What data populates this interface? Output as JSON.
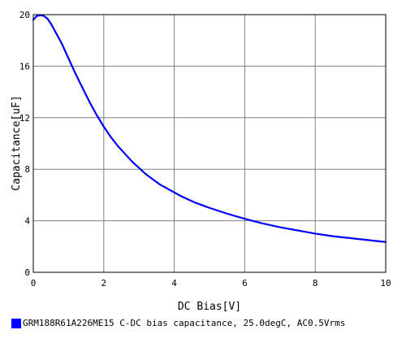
{
  "chart_data": {
    "type": "line",
    "xlabel": "DC Bias[V]",
    "ylabel": "Capacitance[uF]",
    "xlim": [
      0,
      10
    ],
    "ylim": [
      0,
      20
    ],
    "xticks": [
      "0",
      "2",
      "4",
      "6",
      "8",
      "10"
    ],
    "yticks": [
      "0",
      "4",
      "8",
      "12",
      "16",
      "20"
    ],
    "grid": true,
    "legend_position": "bottom-left",
    "series": [
      {
        "name": "GRM188R61A226ME15 C-DC bias capacitance, 25.0degC, AC0.5Vrms",
        "color": "#0000ff",
        "x": [
          0,
          0.1,
          0.2,
          0.3,
          0.4,
          0.5,
          0.6,
          0.7,
          0.8,
          0.9,
          1.0,
          1.2,
          1.4,
          1.6,
          1.8,
          2.0,
          2.2,
          2.4,
          2.6,
          2.8,
          3.0,
          3.2,
          3.4,
          3.6,
          3.8,
          4.0,
          4.2,
          4.4,
          4.6,
          4.8,
          5.0,
          5.5,
          6.0,
          6.5,
          7.0,
          7.5,
          8.0,
          8.5,
          9.0,
          9.5,
          10.0
        ],
        "y": [
          19.6,
          19.9,
          19.95,
          19.9,
          19.7,
          19.3,
          18.8,
          18.3,
          17.8,
          17.2,
          16.6,
          15.4,
          14.3,
          13.2,
          12.2,
          11.3,
          10.5,
          9.8,
          9.2,
          8.6,
          8.1,
          7.6,
          7.2,
          6.8,
          6.5,
          6.2,
          5.9,
          5.65,
          5.4,
          5.2,
          5.0,
          4.55,
          4.15,
          3.8,
          3.5,
          3.25,
          3.0,
          2.8,
          2.65,
          2.5,
          2.35
        ]
      }
    ]
  }
}
